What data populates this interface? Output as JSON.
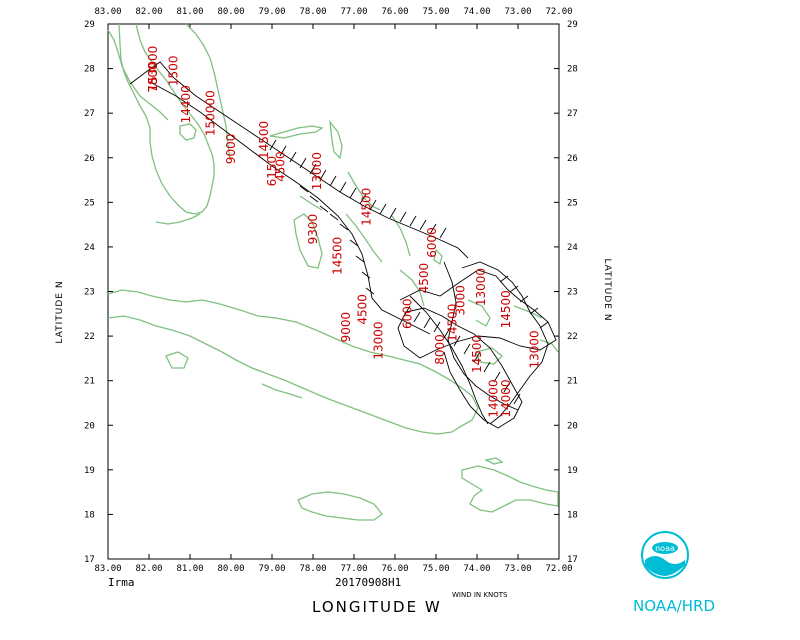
{
  "map": {
    "x_ticks": [
      "83.00",
      "82.00",
      "81.00",
      "80.00",
      "79.00",
      "78.00",
      "77.00",
      "76.00",
      "75.00",
      "74.00",
      "73.00",
      "72.00"
    ],
    "y_ticks": [
      "17",
      "18",
      "19",
      "20",
      "21",
      "22",
      "23",
      "24",
      "25",
      "26",
      "27",
      "28",
      "29"
    ],
    "lon_range": [
      83,
      72
    ],
    "lat_range": [
      17,
      29
    ],
    "coast_color": "#80c080",
    "track_color": "#000000",
    "label_color": "#cc0000"
  },
  "altitude_labels": [
    {
      "text": "153000",
      "lon": 81.8,
      "lat": 28.0
    },
    {
      "text": "7800",
      "lon": 81.8,
      "lat": 27.8
    },
    {
      "text": "1500",
      "lon": 81.3,
      "lat": 27.95
    },
    {
      "text": "14400",
      "lon": 81.0,
      "lat": 27.2
    },
    {
      "text": "150000",
      "lon": 80.4,
      "lat": 27.0
    },
    {
      "text": "9000",
      "lon": 79.9,
      "lat": 26.2
    },
    {
      "text": "14500",
      "lon": 79.1,
      "lat": 26.4
    },
    {
      "text": "6150",
      "lon": 78.9,
      "lat": 25.7
    },
    {
      "text": "4500",
      "lon": 78.7,
      "lat": 25.8
    },
    {
      "text": "13000",
      "lon": 77.8,
      "lat": 25.7
    },
    {
      "text": "9300",
      "lon": 77.9,
      "lat": 24.4
    },
    {
      "text": "14500",
      "lon": 76.6,
      "lat": 24.9
    },
    {
      "text": "14500",
      "lon": 77.3,
      "lat": 23.8
    },
    {
      "text": "6000",
      "lon": 75.0,
      "lat": 24.1
    },
    {
      "text": "13000",
      "lon": 73.8,
      "lat": 23.1
    },
    {
      "text": "4500",
      "lon": 75.2,
      "lat": 23.3
    },
    {
      "text": "14500",
      "lon": 73.2,
      "lat": 22.6
    },
    {
      "text": "4500",
      "lon": 76.7,
      "lat": 22.6
    },
    {
      "text": "9000",
      "lon": 77.1,
      "lat": 22.2
    },
    {
      "text": "13000",
      "lon": 76.3,
      "lat": 21.9
    },
    {
      "text": "6000",
      "lon": 75.6,
      "lat": 22.5
    },
    {
      "text": "14500",
      "lon": 74.5,
      "lat": 22.3
    },
    {
      "text": "14500",
      "lon": 73.9,
      "lat": 21.6
    },
    {
      "text": "8000",
      "lon": 74.8,
      "lat": 21.7
    },
    {
      "text": "14000",
      "lon": 73.2,
      "lat": 20.6
    },
    {
      "text": "14000",
      "lon": 73.5,
      "lat": 20.6
    },
    {
      "text": "13000",
      "lon": 72.5,
      "lat": 21.7
    },
    {
      "text": "3000",
      "lon": 74.3,
      "lat": 22.8
    }
  ],
  "footer": {
    "storm_name": "Irma",
    "date_code": "20170908H1",
    "x_axis_title": "LONGITUDE   W",
    "y_axis_title_left": "LATITUDE   N",
    "y_axis_title_right": "LATITUDE   N",
    "wind_note": "WIND IN KNOTS",
    "org": "NOAA/HRD",
    "logo_text": "noaa"
  }
}
